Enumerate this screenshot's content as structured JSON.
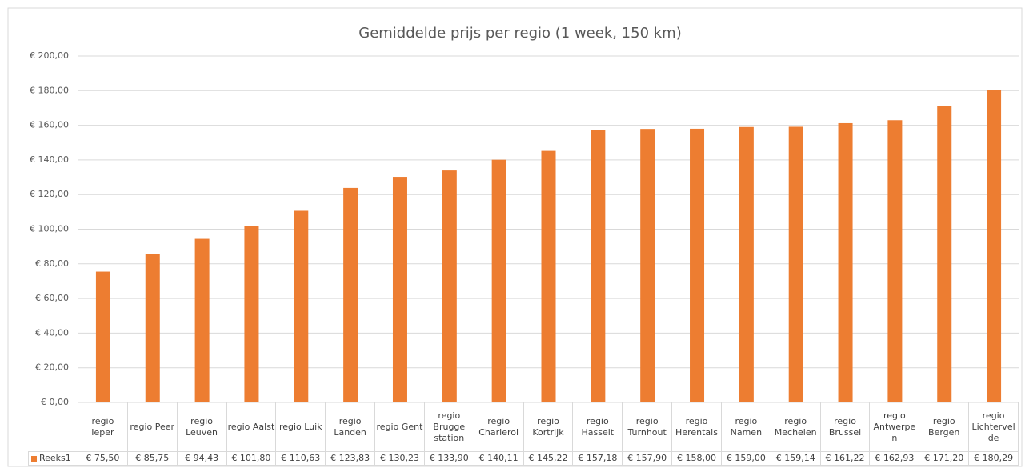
{
  "chart_data": {
    "type": "bar",
    "title": "Gemiddelde prijs per regio (1 week, 150 km)",
    "categories": [
      "regio Ieper",
      "regio Peer",
      "regio Leuven",
      "regio Aalst",
      "regio Luik",
      "regio Landen",
      "regio Gent",
      "regio Brugge station",
      "regio Charleroi",
      "regio Kortrijk",
      "regio Hasselt",
      "regio Turnhout",
      "regio Herentals",
      "regio Namen",
      "regio Mechelen",
      "regio Brussel",
      "regio Antwerpen",
      "regio Bergen",
      "regio Lichtervelde"
    ],
    "series": [
      {
        "name": "Reeks1",
        "color": "#ed7d31",
        "values": [
          75.5,
          85.75,
          94.43,
          101.8,
          110.63,
          123.83,
          130.23,
          133.9,
          140.11,
          145.22,
          157.18,
          157.9,
          158.0,
          159.0,
          159.14,
          161.22,
          162.93,
          171.2,
          180.29
        ],
        "value_labels": [
          "€ 75,50",
          "€ 85,75",
          "€ 94,43",
          "€ 101,80",
          "€ 110,63",
          "€ 123,83",
          "€ 130,23",
          "€ 133,90",
          "€ 140,11",
          "€ 145,22",
          "€ 157,18",
          "€ 157,90",
          "€ 158,00",
          "€ 159,00",
          "€ 159,14",
          "€ 161,22",
          "€ 162,93",
          "€ 171,20",
          "€ 180,29"
        ]
      }
    ],
    "ylim": [
      0,
      200
    ],
    "yticks": [
      {
        "value": 0,
        "label": "€ 0,00"
      },
      {
        "value": 20,
        "label": "€ 20,00"
      },
      {
        "value": 40,
        "label": "€ 40,00"
      },
      {
        "value": 60,
        "label": "€ 60,00"
      },
      {
        "value": 80,
        "label": "€ 80,00"
      },
      {
        "value": 100,
        "label": "€ 100,00"
      },
      {
        "value": 120,
        "label": "€ 120,00"
      },
      {
        "value": 140,
        "label": "€ 140,00"
      },
      {
        "value": 160,
        "label": "€ 160,00"
      },
      {
        "value": 180,
        "label": "€ 180,00"
      },
      {
        "value": 200,
        "label": "€ 200,00"
      }
    ],
    "grid": true
  }
}
